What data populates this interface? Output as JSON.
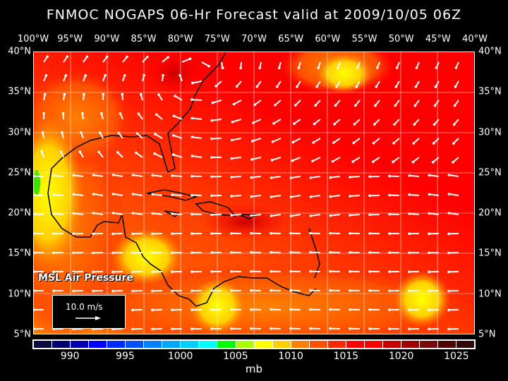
{
  "title": "FNMOC NOGAPS 06-Hr Forecast valid at 2009/10/05 06Z",
  "lon_labels": [
    "100°W",
    "95°W",
    "90°W",
    "85°W",
    "80°W",
    "75°W",
    "70°W",
    "65°W",
    "60°W",
    "55°W",
    "50°W",
    "45°W",
    "40°W"
  ],
  "lat_labels": [
    "40°N",
    "35°N",
    "30°N",
    "25°N",
    "20°N",
    "15°N",
    "10°N",
    "5°N"
  ],
  "field_label": "MSL Air Pressure",
  "wind_legend": "10.0 m/s",
  "colorbar": {
    "unit": "mb",
    "labels": [
      "990",
      "995",
      "1000",
      "1005",
      "1010",
      "1015",
      "1020",
      "1025"
    ],
    "colors": [
      "#0a0a40",
      "#000070",
      "#0000b0",
      "#0000ff",
      "#0028ff",
      "#0050ff",
      "#0080ff",
      "#00a8ff",
      "#00d0ff",
      "#00ffff",
      "#00ff00",
      "#a8ff00",
      "#ffff00",
      "#ffd000",
      "#ff8000",
      "#ff5000",
      "#ff2800",
      "#ff0000",
      "#ff0000",
      "#c80000",
      "#a00000",
      "#7a0a0a",
      "#500000",
      "#300808"
    ]
  }
}
